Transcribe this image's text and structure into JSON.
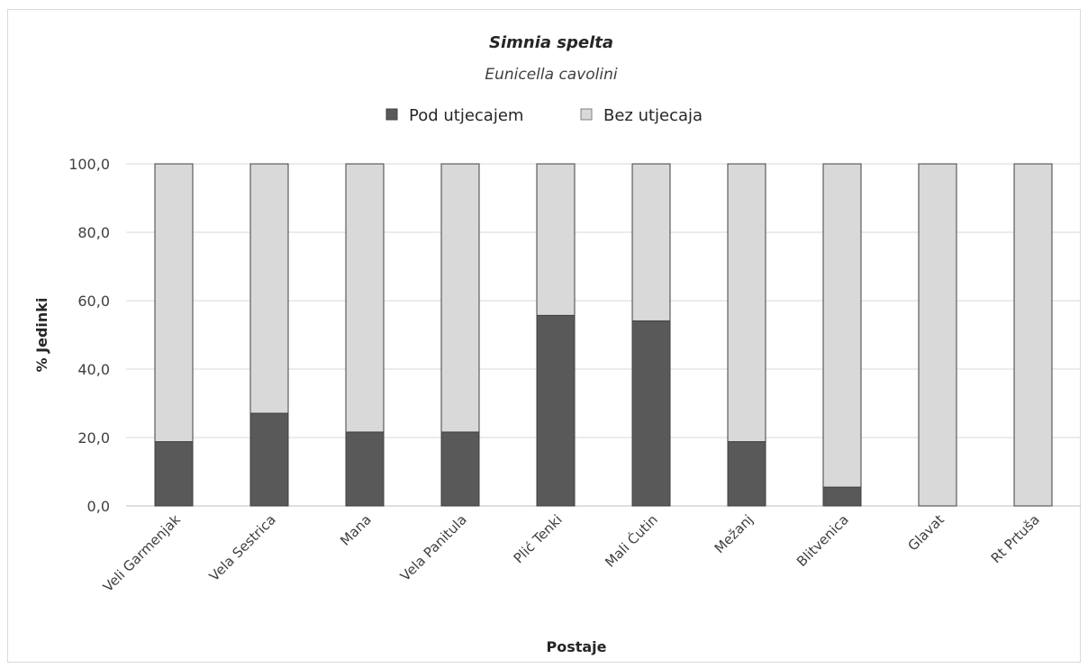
{
  "chart_data": {
    "type": "bar",
    "stacked": true,
    "title": "Simnia spelta",
    "subtitle": "Eunicella cavolini",
    "xlabel": "Postaje",
    "ylabel": "% Jedinki",
    "ylim": [
      0,
      100
    ],
    "yticks": [
      "0,0",
      "20,0",
      "40,0",
      "60,0",
      "80,0",
      "100,0"
    ],
    "ytick_values": [
      0,
      20,
      40,
      60,
      80,
      100
    ],
    "grid": true,
    "legend_position": "top",
    "categories": [
      "Veli Garmenjak",
      "Vela Sestrica",
      "Mana",
      "Vela Panitula",
      "Plić Tenki",
      "Mali Ćutin",
      "Mežanj",
      "Blitvenica",
      "Glavat",
      "Rt Prtuša"
    ],
    "series": [
      {
        "name": "Pod utjecajem",
        "color": "#595959",
        "values": [
          18.8,
          27.1,
          21.6,
          21.6,
          55.7,
          54.1,
          18.8,
          5.5,
          0,
          0
        ]
      },
      {
        "name": "Bez utjecaja",
        "color": "#d9d9d9",
        "values": [
          81.2,
          72.9,
          78.4,
          78.4,
          44.3,
          45.9,
          81.2,
          94.5,
          100,
          100
        ]
      }
    ]
  }
}
